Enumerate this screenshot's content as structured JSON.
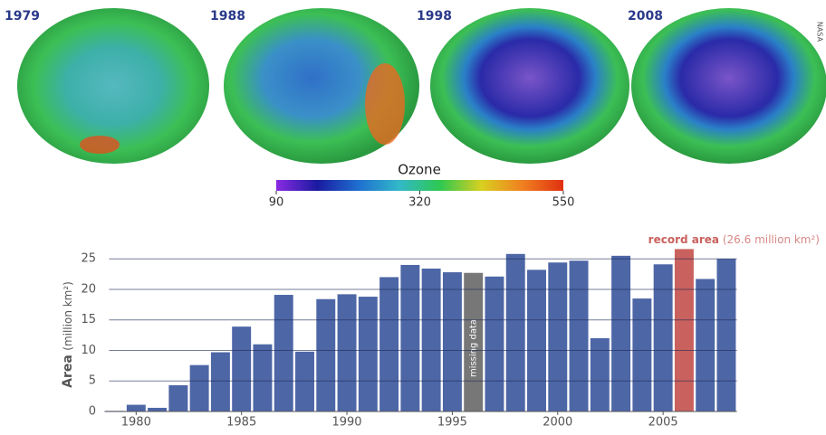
{
  "maps": {
    "years": [
      "1979",
      "1988",
      "1998",
      "2008"
    ],
    "credit": "NASA"
  },
  "colorbar": {
    "title": "Ozone",
    "lim": [
      90,
      550
    ],
    "ticks": [
      90,
      320,
      550
    ],
    "colors": [
      "#8a2be2",
      "#1a1aa0",
      "#1f6fd0",
      "#32b8c8",
      "#2ec850",
      "#d8d020",
      "#f08020",
      "#e03010"
    ]
  },
  "chart_data": {
    "type": "bar",
    "ylabel": {
      "bold": "Area",
      "rest": "(million km²)"
    },
    "x": [
      1979,
      1980,
      1981,
      1982,
      1983,
      1984,
      1985,
      1986,
      1987,
      1988,
      1989,
      1990,
      1991,
      1992,
      1993,
      1994,
      1995,
      1996,
      1997,
      1998,
      1999,
      2000,
      2001,
      2002,
      2003,
      2004,
      2005,
      2006,
      2007,
      2008
    ],
    "series": [
      {
        "name": "Area",
        "color": "#4d66a6",
        "values": [
          0.1,
          1.1,
          0.6,
          4.3,
          7.6,
          9.7,
          13.9,
          11.0,
          19.1,
          9.8,
          18.4,
          19.2,
          18.8,
          22.0,
          24.0,
          23.4,
          22.8,
          null,
          22.1,
          25.8,
          23.2,
          24.4,
          24.7,
          12.0,
          25.5,
          18.5,
          24.1,
          26.6,
          21.7,
          25.0
        ]
      }
    ],
    "missing": {
      "x": 1996,
      "value": 22.7,
      "label": "missing data",
      "color": "#777777"
    },
    "highlight": {
      "x": 2006,
      "color": "#c9615e",
      "label": "record area",
      "note": "(26.6 million km²)"
    },
    "xlim": [
      1978.5,
      2008.5
    ],
    "xticks": [
      1980,
      1985,
      1990,
      1995,
      2000,
      2005
    ],
    "ylim": [
      0,
      27.4
    ],
    "yticks": [
      0,
      5,
      10,
      15,
      20,
      25
    ],
    "grid": true
  }
}
